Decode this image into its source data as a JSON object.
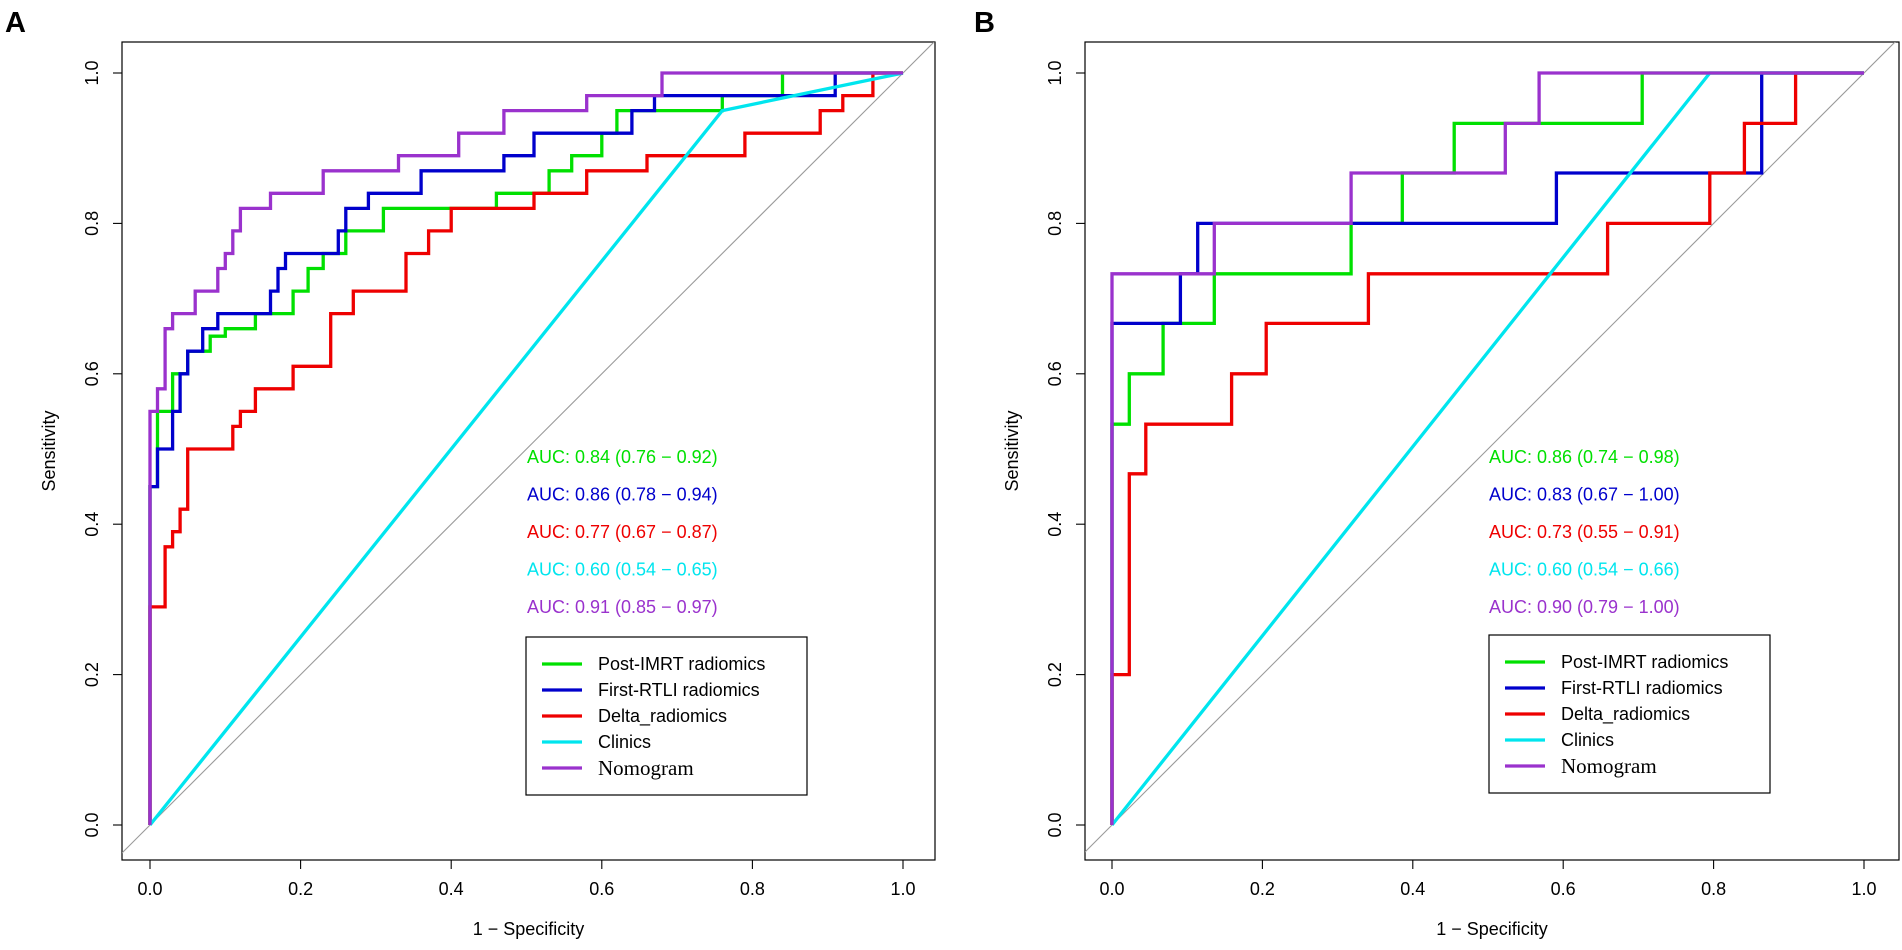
{
  "chart_data": [
    {
      "type": "line",
      "panel_label": "A",
      "xlabel": "1 − Specificity",
      "ylabel": "Sensitivity",
      "xlim": [
        0,
        1
      ],
      "ylim": [
        0,
        1
      ],
      "xticks": [
        "0.0",
        "0.2",
        "0.4",
        "0.6",
        "0.8",
        "1.0"
      ],
      "yticks": [
        "0.0",
        "0.2",
        "0.4",
        "0.6",
        "0.8",
        "1.0"
      ],
      "diagonal_reference": true,
      "legend_position": "bottom-right",
      "series": [
        {
          "name": "Post-IMRT radiomics",
          "color": "#00e000",
          "auc_text": "AUC: 0.84 (0.76 − 0.92)",
          "points": [
            [
              0,
              0
            ],
            [
              0,
              0.45
            ],
            [
              0.01,
              0.45
            ],
            [
              0.01,
              0.55
            ],
            [
              0.03,
              0.55
            ],
            [
              0.03,
              0.6
            ],
            [
              0.05,
              0.6
            ],
            [
              0.05,
              0.63
            ],
            [
              0.08,
              0.63
            ],
            [
              0.08,
              0.65
            ],
            [
              0.1,
              0.65
            ],
            [
              0.1,
              0.66
            ],
            [
              0.14,
              0.66
            ],
            [
              0.14,
              0.68
            ],
            [
              0.19,
              0.68
            ],
            [
              0.19,
              0.71
            ],
            [
              0.21,
              0.71
            ],
            [
              0.21,
              0.74
            ],
            [
              0.23,
              0.74
            ],
            [
              0.23,
              0.76
            ],
            [
              0.26,
              0.76
            ],
            [
              0.26,
              0.79
            ],
            [
              0.31,
              0.79
            ],
            [
              0.31,
              0.82
            ],
            [
              0.46,
              0.82
            ],
            [
              0.46,
              0.84
            ],
            [
              0.53,
              0.84
            ],
            [
              0.53,
              0.87
            ],
            [
              0.56,
              0.87
            ],
            [
              0.56,
              0.89
            ],
            [
              0.6,
              0.89
            ],
            [
              0.6,
              0.92
            ],
            [
              0.62,
              0.92
            ],
            [
              0.62,
              0.95
            ],
            [
              0.76,
              0.95
            ],
            [
              0.76,
              0.97
            ],
            [
              0.84,
              0.97
            ],
            [
              0.84,
              1
            ],
            [
              1,
              1
            ]
          ]
        },
        {
          "name": "First-RTLI radiomics",
          "color": "#0000cc",
          "auc_text": "AUC: 0.86 (0.78 − 0.94)",
          "points": [
            [
              0,
              0
            ],
            [
              0,
              0.45
            ],
            [
              0.01,
              0.45
            ],
            [
              0.01,
              0.5
            ],
            [
              0.03,
              0.5
            ],
            [
              0.03,
              0.55
            ],
            [
              0.04,
              0.55
            ],
            [
              0.04,
              0.6
            ],
            [
              0.05,
              0.6
            ],
            [
              0.05,
              0.63
            ],
            [
              0.07,
              0.63
            ],
            [
              0.07,
              0.66
            ],
            [
              0.09,
              0.66
            ],
            [
              0.09,
              0.68
            ],
            [
              0.16,
              0.68
            ],
            [
              0.16,
              0.71
            ],
            [
              0.17,
              0.71
            ],
            [
              0.17,
              0.74
            ],
            [
              0.18,
              0.74
            ],
            [
              0.18,
              0.76
            ],
            [
              0.25,
              0.76
            ],
            [
              0.25,
              0.79
            ],
            [
              0.26,
              0.79
            ],
            [
              0.26,
              0.82
            ],
            [
              0.29,
              0.82
            ],
            [
              0.29,
              0.84
            ],
            [
              0.36,
              0.84
            ],
            [
              0.36,
              0.87
            ],
            [
              0.47,
              0.87
            ],
            [
              0.47,
              0.89
            ],
            [
              0.51,
              0.89
            ],
            [
              0.51,
              0.92
            ],
            [
              0.64,
              0.92
            ],
            [
              0.64,
              0.95
            ],
            [
              0.67,
              0.95
            ],
            [
              0.67,
              0.97
            ],
            [
              0.91,
              0.97
            ],
            [
              0.91,
              1
            ],
            [
              1,
              1
            ]
          ]
        },
        {
          "name": "Delta_radiomics",
          "color": "#ee0000",
          "auc_text": "AUC: 0.77 (0.67 − 0.87)",
          "points": [
            [
              0,
              0
            ],
            [
              0,
              0.29
            ],
            [
              0.02,
              0.29
            ],
            [
              0.02,
              0.37
            ],
            [
              0.03,
              0.37
            ],
            [
              0.03,
              0.39
            ],
            [
              0.04,
              0.39
            ],
            [
              0.04,
              0.42
            ],
            [
              0.05,
              0.42
            ],
            [
              0.05,
              0.5
            ],
            [
              0.11,
              0.5
            ],
            [
              0.11,
              0.53
            ],
            [
              0.12,
              0.53
            ],
            [
              0.12,
              0.55
            ],
            [
              0.14,
              0.55
            ],
            [
              0.14,
              0.58
            ],
            [
              0.19,
              0.58
            ],
            [
              0.19,
              0.61
            ],
            [
              0.24,
              0.61
            ],
            [
              0.24,
              0.68
            ],
            [
              0.27,
              0.68
            ],
            [
              0.27,
              0.71
            ],
            [
              0.34,
              0.71
            ],
            [
              0.34,
              0.76
            ],
            [
              0.37,
              0.76
            ],
            [
              0.37,
              0.79
            ],
            [
              0.4,
              0.79
            ],
            [
              0.4,
              0.82
            ],
            [
              0.51,
              0.82
            ],
            [
              0.51,
              0.84
            ],
            [
              0.58,
              0.84
            ],
            [
              0.58,
              0.87
            ],
            [
              0.66,
              0.87
            ],
            [
              0.66,
              0.89
            ],
            [
              0.79,
              0.89
            ],
            [
              0.79,
              0.92
            ],
            [
              0.89,
              0.92
            ],
            [
              0.89,
              0.95
            ],
            [
              0.92,
              0.95
            ],
            [
              0.92,
              0.97
            ],
            [
              0.96,
              0.97
            ],
            [
              0.96,
              1
            ],
            [
              1,
              1
            ]
          ]
        },
        {
          "name": "Clinics",
          "color": "#00e5ee",
          "auc_text": "AUC: 0.60 (0.54 − 0.65)",
          "points": [
            [
              0,
              0
            ],
            [
              0.76,
              0.95
            ],
            [
              1,
              1
            ]
          ]
        },
        {
          "name": "Nomogram",
          "color": "#9a32cd",
          "auc_text": "AUC: 0.91 (0.85 − 0.97)",
          "points": [
            [
              0,
              0
            ],
            [
              0,
              0.55
            ],
            [
              0.01,
              0.55
            ],
            [
              0.01,
              0.58
            ],
            [
              0.02,
              0.58
            ],
            [
              0.02,
              0.66
            ],
            [
              0.03,
              0.66
            ],
            [
              0.03,
              0.68
            ],
            [
              0.06,
              0.68
            ],
            [
              0.06,
              0.71
            ],
            [
              0.09,
              0.71
            ],
            [
              0.09,
              0.74
            ],
            [
              0.1,
              0.74
            ],
            [
              0.1,
              0.76
            ],
            [
              0.11,
              0.76
            ],
            [
              0.11,
              0.79
            ],
            [
              0.12,
              0.79
            ],
            [
              0.12,
              0.82
            ],
            [
              0.16,
              0.82
            ],
            [
              0.16,
              0.84
            ],
            [
              0.23,
              0.84
            ],
            [
              0.23,
              0.87
            ],
            [
              0.33,
              0.87
            ],
            [
              0.33,
              0.89
            ],
            [
              0.41,
              0.89
            ],
            [
              0.41,
              0.92
            ],
            [
              0.47,
              0.92
            ],
            [
              0.47,
              0.95
            ],
            [
              0.58,
              0.95
            ],
            [
              0.58,
              0.97
            ],
            [
              0.68,
              0.97
            ],
            [
              0.68,
              1
            ],
            [
              1,
              1
            ]
          ]
        }
      ]
    },
    {
      "type": "line",
      "panel_label": "B",
      "xlabel": "1 − Specificity",
      "ylabel": "Sensitivity",
      "xlim": [
        0,
        1
      ],
      "ylim": [
        0,
        1
      ],
      "xticks": [
        "0.0",
        "0.2",
        "0.4",
        "0.6",
        "0.8",
        "1.0"
      ],
      "yticks": [
        "0.0",
        "0.2",
        "0.4",
        "0.6",
        "0.8",
        "1.0"
      ],
      "diagonal_reference": true,
      "legend_position": "bottom-right",
      "series": [
        {
          "name": "Post-IMRT radiomics",
          "color": "#00e000",
          "auc_text": "AUC: 0.86 (0.74 − 0.98)",
          "points": [
            [
              0,
              0
            ],
            [
              0,
              0.533
            ],
            [
              0.023,
              0.533
            ],
            [
              0.023,
              0.6
            ],
            [
              0.068,
              0.6
            ],
            [
              0.068,
              0.667
            ],
            [
              0.136,
              0.667
            ],
            [
              0.136,
              0.733
            ],
            [
              0.318,
              0.733
            ],
            [
              0.318,
              0.8
            ],
            [
              0.386,
              0.8
            ],
            [
              0.386,
              0.867
            ],
            [
              0.455,
              0.867
            ],
            [
              0.455,
              0.933
            ],
            [
              0.705,
              0.933
            ],
            [
              0.705,
              1
            ],
            [
              1,
              1
            ]
          ]
        },
        {
          "name": "First-RTLI radiomics",
          "color": "#0000cc",
          "auc_text": "AUC: 0.83 (0.67 − 1.00)",
          "points": [
            [
              0,
              0
            ],
            [
              0,
              0.667
            ],
            [
              0.091,
              0.667
            ],
            [
              0.091,
              0.733
            ],
            [
              0.114,
              0.733
            ],
            [
              0.114,
              0.8
            ],
            [
              0.591,
              0.8
            ],
            [
              0.591,
              0.867
            ],
            [
              0.864,
              0.867
            ],
            [
              0.864,
              1
            ],
            [
              1,
              1
            ]
          ]
        },
        {
          "name": "Delta_radiomics",
          "color": "#ee0000",
          "auc_text": "AUC: 0.73 (0.55 − 0.91)",
          "points": [
            [
              0,
              0
            ],
            [
              0,
              0.2
            ],
            [
              0.023,
              0.2
            ],
            [
              0.023,
              0.467
            ],
            [
              0.045,
              0.467
            ],
            [
              0.045,
              0.533
            ],
            [
              0.159,
              0.533
            ],
            [
              0.159,
              0.6
            ],
            [
              0.205,
              0.6
            ],
            [
              0.205,
              0.667
            ],
            [
              0.341,
              0.667
            ],
            [
              0.341,
              0.733
            ],
            [
              0.659,
              0.733
            ],
            [
              0.659,
              0.8
            ],
            [
              0.795,
              0.8
            ],
            [
              0.795,
              0.867
            ],
            [
              0.841,
              0.867
            ],
            [
              0.841,
              0.933
            ],
            [
              0.909,
              0.933
            ],
            [
              0.909,
              1
            ],
            [
              1,
              1
            ]
          ]
        },
        {
          "name": "Clinics",
          "color": "#00e5ee",
          "auc_text": "AUC: 0.60 (0.54 − 0.66)",
          "points": [
            [
              0,
              0
            ],
            [
              0.795,
              1
            ],
            [
              1,
              1
            ]
          ]
        },
        {
          "name": "Nomogram",
          "color": "#9a32cd",
          "auc_text": "AUC: 0.90 (0.79 − 1.00)",
          "points": [
            [
              0,
              0
            ],
            [
              0,
              0.733
            ],
            [
              0.136,
              0.733
            ],
            [
              0.136,
              0.8
            ],
            [
              0.318,
              0.8
            ],
            [
              0.318,
              0.867
            ],
            [
              0.523,
              0.867
            ],
            [
              0.523,
              0.933
            ],
            [
              0.568,
              0.933
            ],
            [
              0.568,
              1
            ],
            [
              1,
              1
            ]
          ]
        }
      ]
    }
  ]
}
